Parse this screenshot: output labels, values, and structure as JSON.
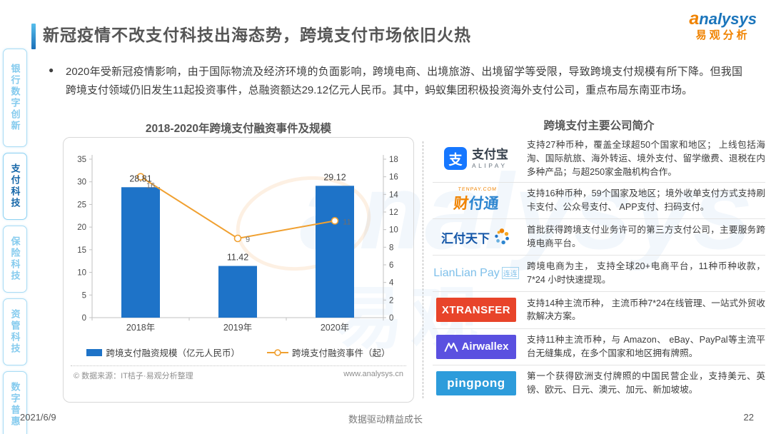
{
  "title": "新冠疫情不改支付科技出海态势，跨境支付市场依旧火热",
  "brand": {
    "logo_en": "analysys",
    "logo_cn": "易观分析"
  },
  "bullet": "2020年受新冠疫情影响，由于国际物流及经济环境的负面影响，跨境电商、出境旅游、出境留学等受限，导致跨境支付规模有所下降。但我国跨境支付领域仍旧发生11起投资事件，总融资额达29.12亿元人民币。其中，蚂蚁集团积极投资海外支付公司，重点布局东南亚市场。",
  "sidebar": {
    "items": [
      {
        "id": "banking-digital",
        "label": "银行数字创新",
        "active": false
      },
      {
        "id": "payment-tech",
        "label": "支付科技",
        "active": true
      },
      {
        "id": "insurtech",
        "label": "保险科技",
        "active": false
      },
      {
        "id": "asset-mgmt",
        "label": "资管科技",
        "active": false
      },
      {
        "id": "digital-inclusion",
        "label": "数字普惠",
        "active": false
      }
    ]
  },
  "chart": {
    "source_left": "© 数据来源：IT桔子·易观分析整理",
    "source_right": "www.analysys.cn"
  },
  "chart_data": {
    "type": "bar",
    "title": "2018-2020年跨境支付融资事件及规模",
    "categories": [
      "2018年",
      "2019年",
      "2020年"
    ],
    "series": [
      {
        "name": "跨境支付融资规模（亿元人民币）",
        "type": "bar",
        "axis": "left",
        "values": [
          28.81,
          11.42,
          29.12
        ],
        "color": "#1E73C8"
      },
      {
        "name": "跨境支付融资事件（起）",
        "type": "line",
        "axis": "right",
        "values": [
          16,
          9,
          11
        ],
        "color": "#F0A030"
      }
    ],
    "left_axis": {
      "min": 0,
      "max": 35,
      "step": 5,
      "ticks": [
        0,
        5,
        10,
        15,
        20,
        25,
        30,
        35
      ]
    },
    "right_axis": {
      "min": 0,
      "max": 18,
      "step": 2,
      "ticks": [
        0,
        2,
        4,
        6,
        8,
        10,
        12,
        14,
        16,
        18
      ]
    },
    "grid": false,
    "legend_position": "bottom"
  },
  "companies": {
    "header": "跨境支付主要公司简介",
    "rows": [
      {
        "id": "alipay",
        "logo": {
          "icon": "支",
          "cn": "支付宝",
          "en": "ALIPAY"
        },
        "desc": "支持27种币种，覆盖全球超50个国家和地区； 上线包括海淘、国际航旅、海外转运、境外支付、留学缴费、退税在内多种产品；与超250家金融机构合作。"
      },
      {
        "id": "tenpay",
        "logo": {
          "sub": "TENPAY.COM",
          "cn": "财付通"
        },
        "desc": "支持16种币种，59个国家及地区；境外收单支付方式支持刷卡支付、公众号支付、 APP支付、扫码支付。"
      },
      {
        "id": "huifu",
        "logo": {
          "cn": "汇付天下"
        },
        "desc": "首批获得跨境支付业务许可的第三方支付公司，主要服务跨境电商平台。"
      },
      {
        "id": "lianlian",
        "logo": {
          "en": "LianLian Pay",
          "cn": "连连"
        },
        "desc": "跨境电商为主， 支持全球20+电商平台，11种币种收款，7*24 小时快速提现。"
      },
      {
        "id": "xtransfer",
        "logo": {
          "en": "XTRANSFER"
        },
        "desc": "支持14种主流币种， 主流币种7*24在线管理、一站式外贸收款解决方案。"
      },
      {
        "id": "airwallex",
        "logo": {
          "en": "Airwallex"
        },
        "desc": "支持11种主流币种，与 Amazon、 eBay、PayPal等主流平台无缝集成，在多个国家和地区拥有牌照。"
      },
      {
        "id": "pingpong",
        "logo": {
          "en": "pingpong"
        },
        "desc": "第一个获得欧洲支付牌照的中国民营企业，支持美元、英镑、欧元、日元、澳元、加元、新加坡坡。"
      }
    ]
  },
  "footer": {
    "date": "2021/6/9",
    "center": "数据驱动精益成长",
    "page": "22"
  },
  "colors": {
    "accent_blue": "#1B75BB",
    "sidebar_light_blue": "#85CBEE",
    "bar_blue": "#1E73C8",
    "line_orange": "#F0A030",
    "brand_orange": "#F08300"
  }
}
